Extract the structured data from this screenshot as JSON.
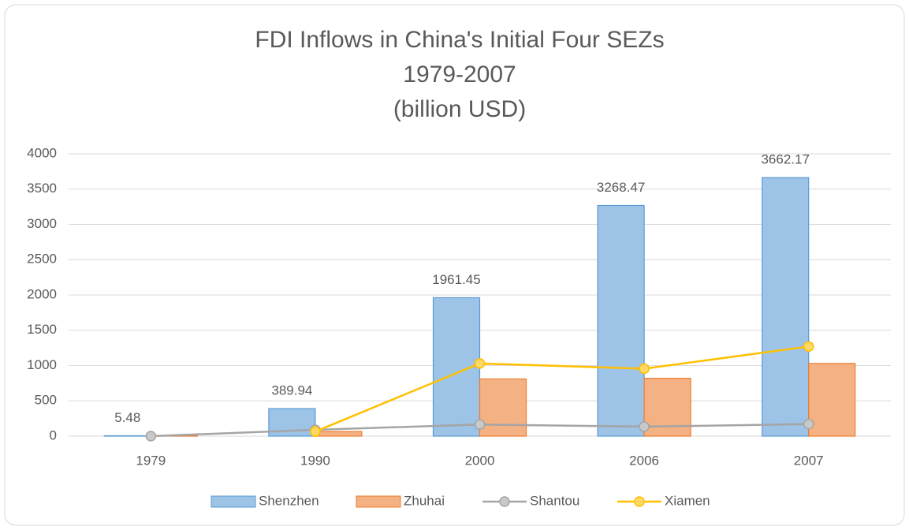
{
  "chart_data": {
    "type": "bar_line",
    "title": [
      "FDI Inflows in China's Initial Four SEZs",
      "1979-2007",
      "(billion USD)"
    ],
    "categories": [
      "1979",
      "1990",
      "2000",
      "2006",
      "2007"
    ],
    "series": [
      {
        "name": "Shenzhen",
        "type": "bar",
        "color": "#9dc3e6",
        "values": [
          5.48,
          389.94,
          1961.45,
          3268.47,
          3662.17
        ]
      },
      {
        "name": "Zhuhai",
        "type": "bar",
        "color": "#f4b183",
        "values": [
          5,
          65,
          810,
          820,
          1030
        ]
      },
      {
        "name": "Shantou",
        "type": "line",
        "color": "#a5a5a5",
        "values": [
          0,
          90,
          165,
          135,
          170
        ]
      },
      {
        "name": "Xiamen",
        "type": "line",
        "color": "#ffc000",
        "values": [
          null,
          65,
          1030,
          955,
          1270
        ]
      }
    ],
    "ylim": [
      0,
      4000
    ],
    "yticks": [
      0,
      500,
      1000,
      1500,
      2000,
      2500,
      3000,
      3500,
      4000
    ],
    "grid": true,
    "legend": "bottom"
  }
}
